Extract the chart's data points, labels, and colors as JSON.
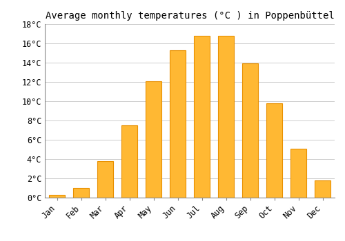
{
  "title": "Average monthly temperatures (°C ) in Poppenbüttel",
  "months": [
    "Jan",
    "Feb",
    "Mar",
    "Apr",
    "May",
    "Jun",
    "Jul",
    "Aug",
    "Sep",
    "Oct",
    "Nov",
    "Dec"
  ],
  "values": [
    0.3,
    1.0,
    3.8,
    7.5,
    12.1,
    15.3,
    16.8,
    16.8,
    13.9,
    9.8,
    5.1,
    1.8
  ],
  "bar_color": "#FFB833",
  "bar_edge_color": "#E89000",
  "ylim": [
    0,
    18
  ],
  "yticks": [
    0,
    2,
    4,
    6,
    8,
    10,
    12,
    14,
    16,
    18
  ],
  "ytick_labels": [
    "0°C",
    "2°C",
    "4°C",
    "6°C",
    "8°C",
    "10°C",
    "12°C",
    "14°C",
    "16°C",
    "18°C"
  ],
  "background_color": "#ffffff",
  "grid_color": "#cccccc",
  "title_fontsize": 10,
  "tick_fontsize": 8.5,
  "bar_width": 0.65
}
